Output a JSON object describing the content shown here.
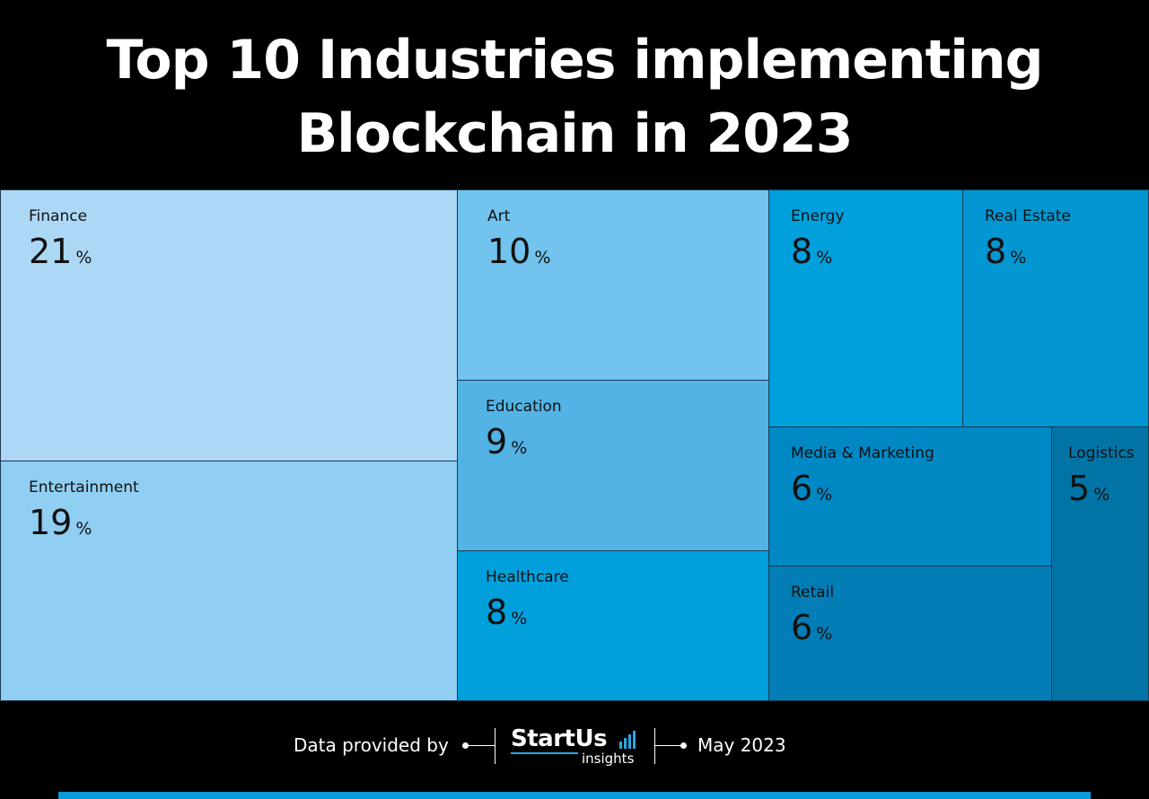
{
  "title_line1": "Top 10 Industries implementing",
  "title_line2": "Blockchain in 2023",
  "chart_data": {
    "type": "treemap",
    "title": "Top 10 Industries implementing Blockchain in 2023",
    "unit": "%",
    "categories": [
      "Finance",
      "Entertainment",
      "Art",
      "Education",
      "Healthcare",
      "Energy",
      "Real Estate",
      "Media & Marketing",
      "Retail",
      "Logistics"
    ],
    "values": [
      21,
      19,
      10,
      9,
      8,
      8,
      8,
      6,
      6,
      5
    ],
    "colors": [
      "#acd8f6",
      "#90cef2",
      "#72c3ee",
      "#52b3e4",
      "#00a0dc",
      "#00a0dc",
      "#0296d2",
      "#0088c4",
      "#027db5",
      "#0174a5"
    ]
  },
  "footer": {
    "provided_by": "Data provided by",
    "brand": "StartUs",
    "brand_sub": "insights",
    "date": "May 2023"
  }
}
